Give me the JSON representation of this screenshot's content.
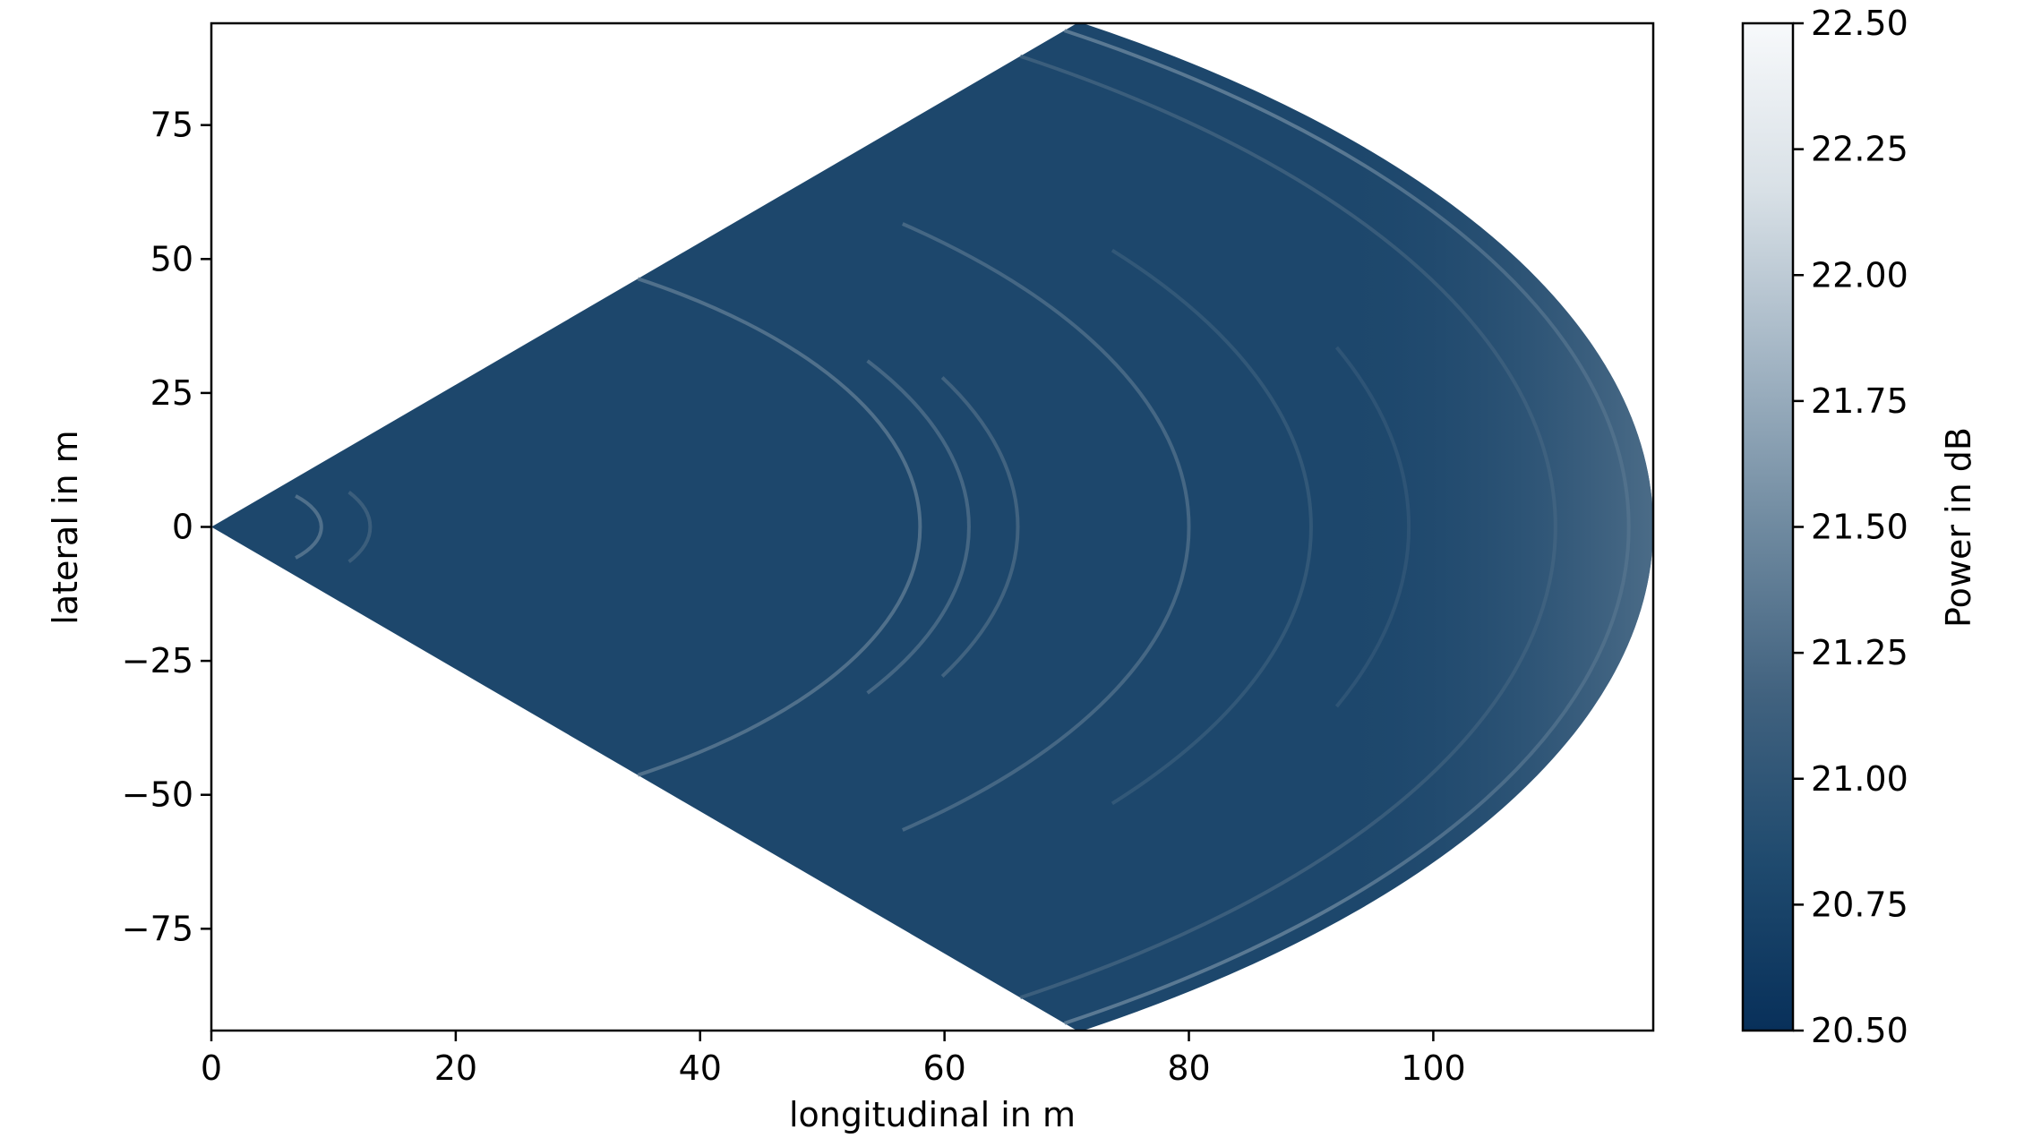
{
  "chart_data": {
    "type": "heatmap",
    "title": "",
    "xlabel": "longitudinal in m",
    "ylabel": "lateral in m",
    "xlim": [
      0,
      118
    ],
    "ylim": [
      -94,
      94
    ],
    "x_ticks": [
      0,
      20,
      40,
      60,
      80,
      100
    ],
    "x_tick_labels": [
      "0",
      "20",
      "40",
      "60",
      "80",
      "100"
    ],
    "y_ticks": [
      75,
      50,
      25,
      0,
      -25,
      -50,
      -75
    ],
    "y_tick_labels": [
      "75",
      "50",
      "25",
      "0",
      "−25",
      "−50",
      "−75"
    ],
    "colorbar": {
      "label": "Power in dB",
      "range": [
        20.5,
        22.5
      ],
      "ticks": [
        22.5,
        22.25,
        22.0,
        21.75,
        21.5,
        21.25,
        21.0,
        20.75,
        20.5
      ],
      "tick_labels": [
        "22.50",
        "22.25",
        "22.00",
        "21.75",
        "21.50",
        "21.25",
        "21.00",
        "20.75",
        "20.50"
      ],
      "colormap": [
        "#08305a",
        "#1f4a6e",
        "#41627f",
        "#6f8aa0",
        "#a3b5c4",
        "#d8e0e6",
        "#f7f9fb"
      ]
    },
    "field": {
      "shape": "sector",
      "max_range_m": 118,
      "half_angle_deg": 53,
      "background_db": 20.8
    },
    "arcs": [
      {
        "range_m": 9,
        "half_angle_deg": 40,
        "db": 21.4
      },
      {
        "range_m": 13,
        "half_angle_deg": 30,
        "db": 21.2
      },
      {
        "range_m": 58,
        "half_angle_deg": 53,
        "db": 21.4
      },
      {
        "range_m": 62,
        "half_angle_deg": 30,
        "db": 21.3
      },
      {
        "range_m": 66,
        "half_angle_deg": 25,
        "db": 21.25
      },
      {
        "range_m": 80,
        "half_angle_deg": 45,
        "db": 21.3
      },
      {
        "range_m": 90,
        "half_angle_deg": 35,
        "db": 21.1
      },
      {
        "range_m": 98,
        "half_angle_deg": 20,
        "db": 21.05
      },
      {
        "range_m": 110,
        "half_angle_deg": 53,
        "db": 21.2
      },
      {
        "range_m": 116,
        "half_angle_deg": 53,
        "db": 21.5
      }
    ]
  }
}
